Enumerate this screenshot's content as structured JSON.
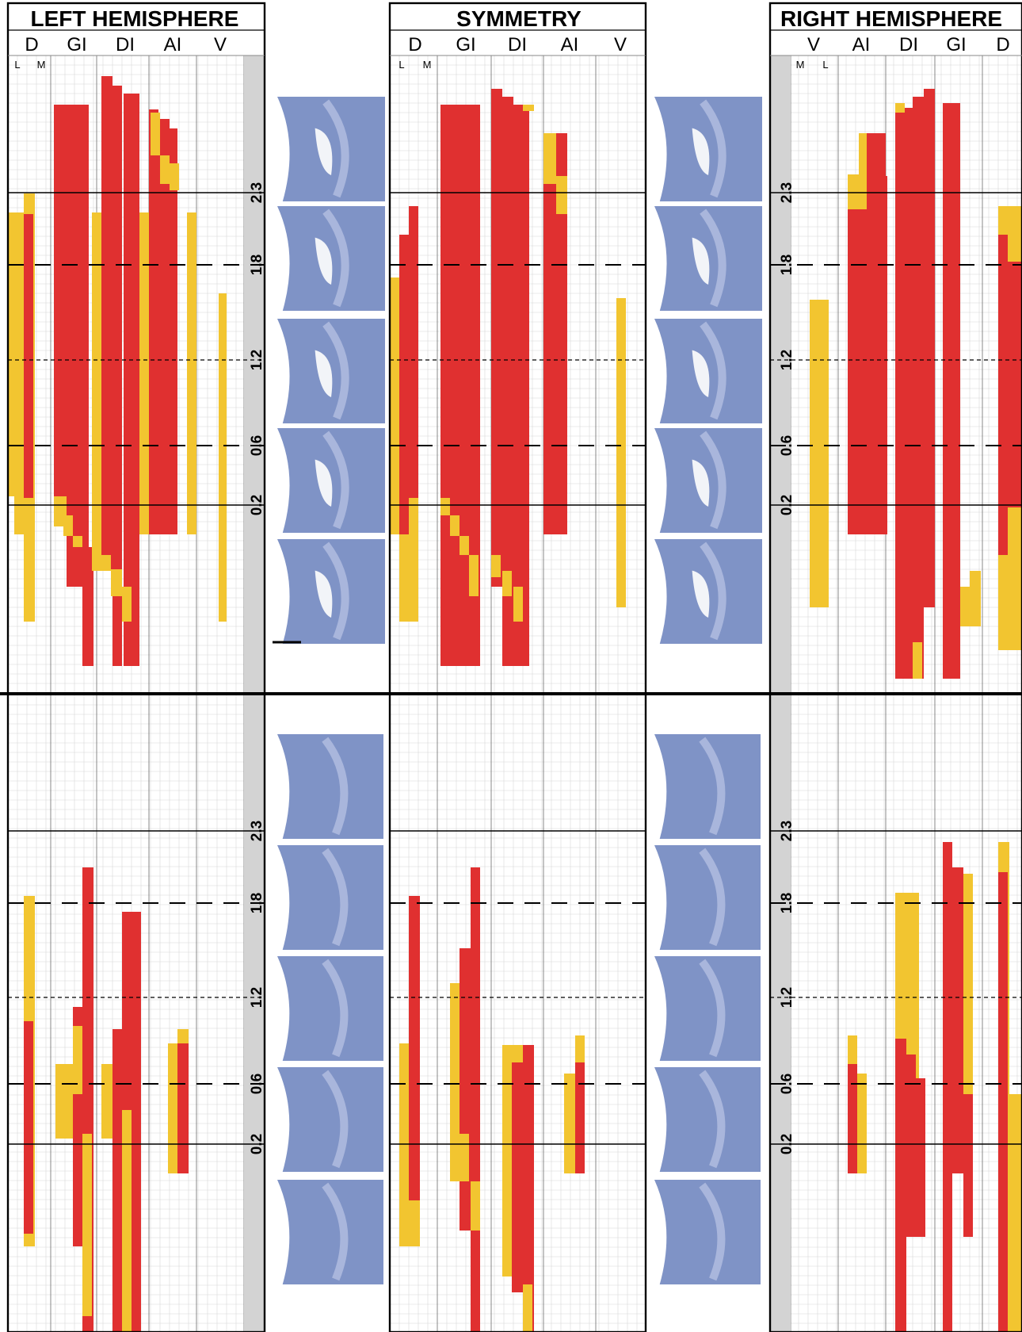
{
  "colors": {
    "red": "#e03030",
    "yellow": "#f2c530",
    "grid": "#d8d8d8",
    "axis_strip": "#d3d3d3",
    "tissue": "#7f93c6"
  },
  "panels": [
    {
      "title": "LEFT HEMISPHERE",
      "columns": [
        "D",
        "GI",
        "DI",
        "AI",
        "V"
      ],
      "sublabels": [
        "L",
        "M"
      ]
    },
    {
      "title": "SYMMETRY",
      "columns": [
        "D",
        "GI",
        "DI",
        "AI",
        "V"
      ],
      "sublabels": [
        "L",
        "M"
      ]
    },
    {
      "title": "RIGHT HEMISPHERE",
      "columns": [
        "V",
        "AI",
        "DI",
        "GI",
        "D"
      ],
      "sublabels": [
        "M",
        "L"
      ]
    }
  ],
  "tick_labels": [
    "2.3",
    "1.8",
    "1.2",
    "0.6",
    "0.2"
  ],
  "section_icons": [
    "brain-section-icon"
  ]
}
